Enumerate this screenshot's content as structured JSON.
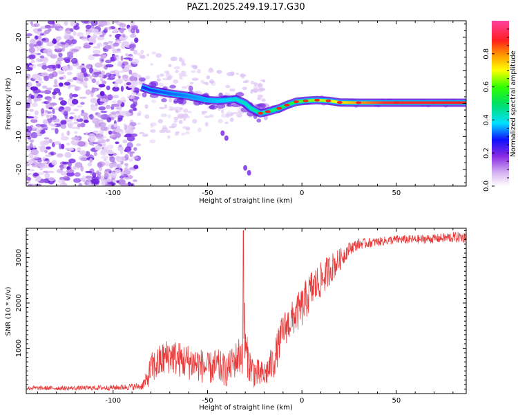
{
  "title": "PAZ1.2025.249.19.17.G30",
  "chart_data": [
    {
      "type": "heatmap",
      "xlabel": "Height of straight line (km)",
      "ylabel": "Frequency (Hz)",
      "xlim": [
        -146,
        87
      ],
      "ylim": [
        -25,
        25
      ],
      "xticks": [
        -100,
        -50,
        0,
        50
      ],
      "yticks": [
        -20,
        -10,
        0,
        10,
        20
      ],
      "colorbar": {
        "label": "Normalized spectral amplitude",
        "range": [
          0,
          1
        ],
        "ticks": [
          0.0,
          0.2,
          0.4,
          0.6,
          0.8
        ]
      },
      "ridge": [
        {
          "x": -85,
          "y": 5
        },
        {
          "x": -80,
          "y": 4
        },
        {
          "x": -75,
          "y": 3.5
        },
        {
          "x": -70,
          "y": 3
        },
        {
          "x": -65,
          "y": 2.6
        },
        {
          "x": -60,
          "y": 2.2
        },
        {
          "x": -55,
          "y": 1.6
        },
        {
          "x": -50,
          "y": 1
        },
        {
          "x": -45,
          "y": 0.8
        },
        {
          "x": -40,
          "y": 1
        },
        {
          "x": -35,
          "y": 1.3
        },
        {
          "x": -30,
          "y": 0
        },
        {
          "x": -27,
          "y": -1.5
        },
        {
          "x": -22,
          "y": -3
        },
        {
          "x": -18,
          "y": -2.5
        },
        {
          "x": -12,
          "y": -1.5
        },
        {
          "x": -8,
          "y": -0.5
        },
        {
          "x": -3,
          "y": 0.5
        },
        {
          "x": 2,
          "y": 0.8
        },
        {
          "x": 8,
          "y": 1
        },
        {
          "x": 14,
          "y": 0.8
        },
        {
          "x": 20,
          "y": 0.3
        },
        {
          "x": 30,
          "y": 0.2
        },
        {
          "x": 50,
          "y": 0.2
        },
        {
          "x": 70,
          "y": 0.2
        },
        {
          "x": 87,
          "y": 0.2
        }
      ],
      "side_blobs": [
        {
          "x": -42,
          "y": -9
        },
        {
          "x": -40,
          "y": -10.5
        },
        {
          "x": -30,
          "y": -19.5
        },
        {
          "x": -28,
          "y": -21
        }
      ]
    },
    {
      "type": "line",
      "xlabel": "Height of straight line (km)",
      "ylabel": "SNR (10 * v/v)",
      "xlim": [
        -146,
        87
      ],
      "ylim": [
        0,
        3650
      ],
      "xticks": [
        -100,
        -50,
        0,
        50
      ],
      "yticks": [
        1000,
        2000,
        3000
      ],
      "color": "#e83a3a",
      "series": [
        {
          "x": [
            -146,
            -120,
            -100,
            -85,
            -82,
            -80,
            -75,
            -70,
            -65,
            -60,
            -55,
            -50,
            -45,
            -40,
            -35,
            -32,
            -30,
            -28,
            -25,
            -20,
            -15,
            -10,
            -5,
            0,
            5,
            10,
            15,
            20,
            25,
            30,
            40,
            50,
            60,
            70,
            80,
            87
          ],
          "values": [
            120,
            120,
            130,
            160,
            300,
            550,
            700,
            850,
            750,
            700,
            650,
            550,
            600,
            500,
            750,
            900,
            1000,
            650,
            450,
            400,
            700,
            1400,
            1650,
            1900,
            2300,
            2500,
            2750,
            2950,
            3200,
            3300,
            3350,
            3400,
            3400,
            3420,
            3450,
            3450
          ],
          "amplitude": [
            50,
            50,
            60,
            80,
            200,
            350,
            400,
            400,
            400,
            400,
            400,
            350,
            400,
            350,
            400,
            500,
            500,
            400,
            350,
            300,
            400,
            400,
            400,
            450,
            450,
            400,
            350,
            250,
            150,
            120,
            100,
            100,
            100,
            100,
            120,
            120
          ],
          "spikes": [
            {
              "x": -31,
              "y": 3600
            },
            {
              "x": -30.5,
              "y": 2000
            }
          ]
        }
      ]
    }
  ]
}
